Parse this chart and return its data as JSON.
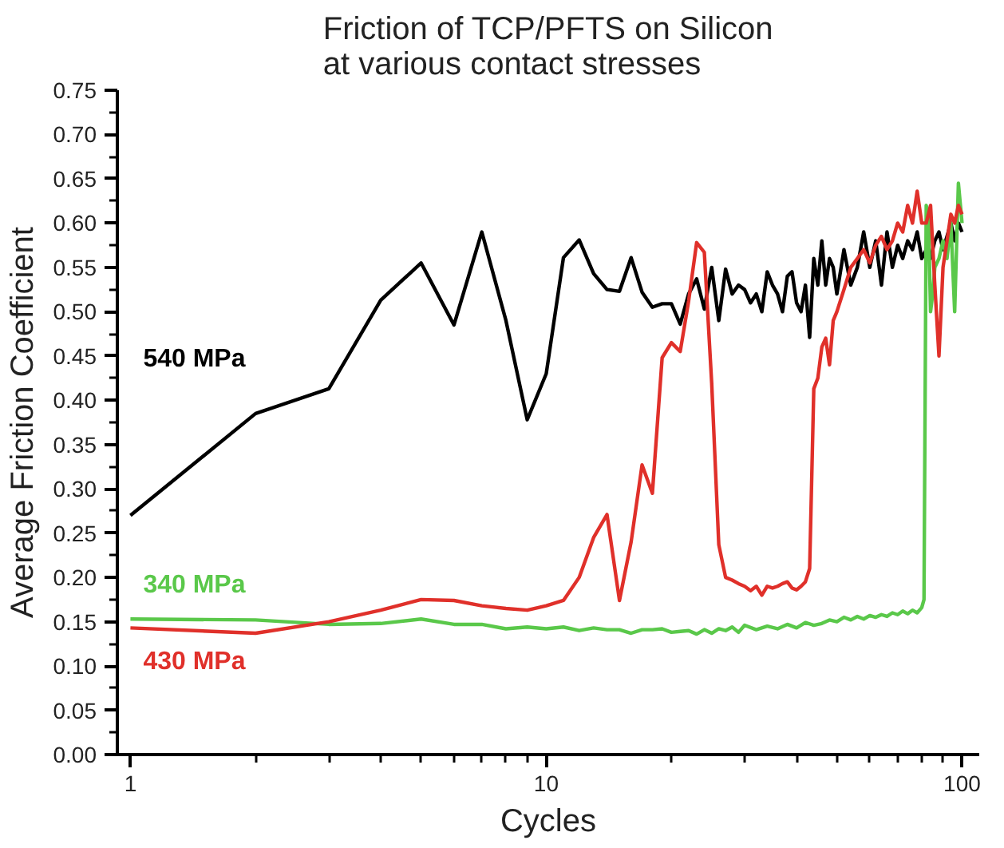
{
  "chart_data": {
    "type": "line",
    "title": "Friction of TCP/PFTS on Silicon\nat various contact stresses",
    "xlabel": "Cycles",
    "ylabel": "Average Friction Coefficient",
    "log": "x",
    "grid": false,
    "marker": "none",
    "line_style": "solid",
    "xlim": [
      0.93,
      110
    ],
    "xticks": [
      1,
      10,
      100
    ],
    "ylim": [
      0,
      0.75
    ],
    "yticks": [
      {
        "value": 0,
        "label": "0.00"
      },
      0.05,
      {
        "value": 0.1,
        "label": "0.10"
      },
      0.15,
      {
        "value": 0.2,
        "label": "0.20"
      },
      0.25,
      {
        "value": 0.3,
        "label": "0.30"
      },
      0.35,
      {
        "value": 0.4,
        "label": "0.40"
      },
      0.45,
      {
        "value": 0.5,
        "label": "0.50"
      },
      0.55,
      {
        "value": 0.6,
        "label": "0.60"
      },
      0.65,
      {
        "value": 0.7,
        "label": "0.70"
      },
      0.75
    ],
    "series": [
      {
        "name": "540 MPa",
        "color": "#000000",
        "x": [
          1,
          2,
          3,
          4,
          5,
          6,
          7,
          8,
          9,
          10,
          11,
          12,
          13,
          14,
          15,
          16,
          17,
          18,
          19,
          20,
          21,
          22,
          23,
          24,
          25,
          26,
          27,
          28,
          29,
          30,
          31,
          32,
          33,
          34,
          35,
          36,
          37,
          38,
          39,
          40,
          41,
          42,
          43,
          44,
          45,
          46,
          47,
          48,
          49,
          50,
          52,
          54,
          56,
          58,
          60,
          62,
          64,
          66,
          68,
          70,
          72,
          74,
          76,
          78,
          80,
          82,
          84,
          86,
          88,
          90,
          92,
          94,
          96,
          98,
          100
        ],
        "values": [
          0.27,
          0.385,
          0.413,
          0.513,
          0.555,
          0.485,
          0.59,
          0.49,
          0.378,
          0.43,
          0.561,
          0.581,
          0.543,
          0.525,
          0.523,
          0.561,
          0.522,
          0.505,
          0.509,
          0.509,
          0.486,
          0.52,
          0.537,
          0.503,
          0.55,
          0.49,
          0.548,
          0.52,
          0.53,
          0.525,
          0.51,
          0.52,
          0.5,
          0.545,
          0.53,
          0.52,
          0.5,
          0.54,
          0.545,
          0.51,
          0.5,
          0.53,
          0.471,
          0.56,
          0.53,
          0.58,
          0.53,
          0.56,
          0.55,
          0.52,
          0.57,
          0.53,
          0.55,
          0.59,
          0.55,
          0.58,
          0.53,
          0.59,
          0.55,
          0.575,
          0.56,
          0.58,
          0.57,
          0.59,
          0.56,
          0.57,
          0.56,
          0.58,
          0.59,
          0.57,
          0.585,
          0.6,
          0.58,
          0.6,
          0.59
        ]
      },
      {
        "name": "340 MPa",
        "color": "#5ac84a",
        "x": [
          1,
          2,
          3,
          4,
          5,
          6,
          7,
          8,
          9,
          10,
          11,
          12,
          13,
          14,
          15,
          16,
          17,
          18,
          19,
          20,
          21,
          22,
          23,
          24,
          25,
          26,
          27,
          28,
          29,
          30,
          32,
          34,
          36,
          38,
          40,
          42,
          44,
          46,
          48,
          50,
          52,
          54,
          56,
          58,
          60,
          62,
          64,
          66,
          68,
          70,
          72,
          74,
          76,
          78,
          80,
          81,
          82,
          83,
          84,
          85,
          86,
          88,
          90,
          92,
          94,
          96,
          98,
          100
        ],
        "values": [
          0.153,
          0.152,
          0.147,
          0.148,
          0.153,
          0.147,
          0.147,
          0.142,
          0.144,
          0.142,
          0.144,
          0.14,
          0.143,
          0.141,
          0.141,
          0.137,
          0.141,
          0.141,
          0.142,
          0.138,
          0.139,
          0.14,
          0.136,
          0.141,
          0.137,
          0.142,
          0.14,
          0.144,
          0.138,
          0.146,
          0.141,
          0.145,
          0.142,
          0.147,
          0.143,
          0.149,
          0.146,
          0.148,
          0.152,
          0.15,
          0.155,
          0.152,
          0.156,
          0.153,
          0.157,
          0.155,
          0.158,
          0.156,
          0.16,
          0.158,
          0.162,
          0.159,
          0.163,
          0.16,
          0.166,
          0.175,
          0.62,
          0.61,
          0.5,
          0.52,
          0.55,
          0.56,
          0.58,
          0.56,
          0.6,
          0.5,
          0.645,
          0.6
        ]
      },
      {
        "name": "430 MPa",
        "color": "#e0302a",
        "x": [
          1,
          2,
          3,
          4,
          5,
          6,
          7,
          8,
          9,
          10,
          11,
          12,
          13,
          14,
          15,
          16,
          17,
          18,
          19,
          20,
          21,
          22,
          23,
          24,
          25,
          26,
          27,
          28,
          29,
          30,
          31,
          32,
          33,
          34,
          35,
          36,
          37,
          38,
          39,
          40,
          41,
          42,
          43,
          44,
          45,
          46,
          47,
          48,
          49,
          50,
          52,
          54,
          56,
          58,
          60,
          62,
          64,
          66,
          68,
          70,
          72,
          74,
          76,
          78,
          80,
          82,
          84,
          86,
          88,
          90,
          92,
          94,
          96,
          98,
          100
        ],
        "values": [
          0.143,
          0.137,
          0.15,
          0.163,
          0.175,
          0.174,
          0.168,
          0.165,
          0.163,
          0.168,
          0.174,
          0.2,
          0.245,
          0.271,
          0.174,
          0.24,
          0.327,
          0.295,
          0.448,
          0.465,
          0.455,
          0.512,
          0.578,
          0.567,
          0.419,
          0.237,
          0.2,
          0.197,
          0.193,
          0.19,
          0.185,
          0.19,
          0.18,
          0.19,
          0.188,
          0.19,
          0.193,
          0.195,
          0.188,
          0.186,
          0.19,
          0.195,
          0.21,
          0.413,
          0.425,
          0.46,
          0.47,
          0.44,
          0.49,
          0.5,
          0.525,
          0.55,
          0.56,
          0.57,
          0.555,
          0.575,
          0.585,
          0.57,
          0.58,
          0.6,
          0.59,
          0.62,
          0.6,
          0.636,
          0.6,
          0.6,
          0.62,
          0.53,
          0.45,
          0.55,
          0.58,
          0.61,
          0.6,
          0.62,
          0.61
        ]
      }
    ]
  }
}
